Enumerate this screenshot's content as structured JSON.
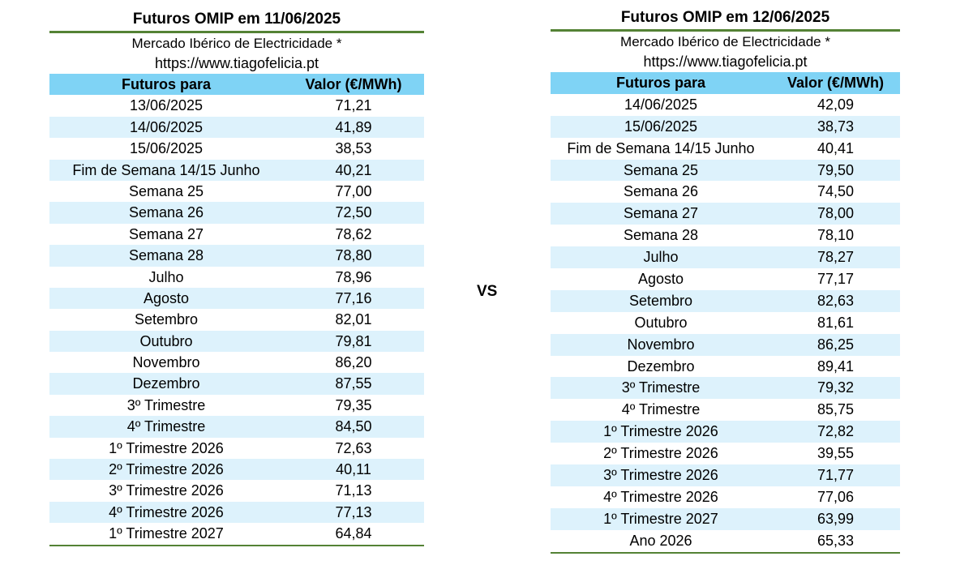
{
  "left": {
    "title": "Futuros OMIP em 11/06/2025",
    "subtitle": "Mercado Ibérico de Electricidade *",
    "url": "https://www.tiagofelicia.pt",
    "header": [
      "Futuros para",
      "Valor (€/MWh)"
    ],
    "rows": [
      [
        "13/06/2025",
        "71,21"
      ],
      [
        "14/06/2025",
        "41,89"
      ],
      [
        "15/06/2025",
        "38,53"
      ],
      [
        "Fim de Semana 14/15 Junho",
        "40,21"
      ],
      [
        "Semana 25",
        "77,00"
      ],
      [
        "Semana 26",
        "72,50"
      ],
      [
        "Semana 27",
        "78,62"
      ],
      [
        "Semana 28",
        "78,80"
      ],
      [
        "Julho",
        "78,96"
      ],
      [
        "Agosto",
        "77,16"
      ],
      [
        "Setembro",
        "82,01"
      ],
      [
        "Outubro",
        "79,81"
      ],
      [
        "Novembro",
        "86,20"
      ],
      [
        "Dezembro",
        "87,55"
      ],
      [
        "3º Trimestre",
        "79,35"
      ],
      [
        "4º Trimestre",
        "84,50"
      ],
      [
        "1º Trimestre 2026",
        "72,63"
      ],
      [
        "2º Trimestre 2026",
        "40,11"
      ],
      [
        "3º Trimestre 2026",
        "71,13"
      ],
      [
        "4º Trimestre 2026",
        "77,13"
      ],
      [
        "1º Trimestre 2027",
        "64,84"
      ]
    ]
  },
  "vs": "VS",
  "right": {
    "title": "Futuros OMIP em 12/06/2025",
    "subtitle": "Mercado Ibérico de Electricidade *",
    "url": "https://www.tiagofelicia.pt",
    "header": [
      "Futuros para",
      "Valor (€/MWh)"
    ],
    "rows": [
      [
        "14/06/2025",
        "42,09"
      ],
      [
        "15/06/2025",
        "38,73"
      ],
      [
        "Fim de Semana 14/15 Junho",
        "40,41"
      ],
      [
        "Semana 25",
        "79,50"
      ],
      [
        "Semana 26",
        "74,50"
      ],
      [
        "Semana 27",
        "78,00"
      ],
      [
        "Semana 28",
        "78,10"
      ],
      [
        "Julho",
        "78,27"
      ],
      [
        "Agosto",
        "77,17"
      ],
      [
        "Setembro",
        "82,63"
      ],
      [
        "Outubro",
        "81,61"
      ],
      [
        "Novembro",
        "86,25"
      ],
      [
        "Dezembro",
        "89,41"
      ],
      [
        "3º Trimestre",
        "79,32"
      ],
      [
        "4º Trimestre",
        "85,75"
      ],
      [
        "1º Trimestre 2026",
        "72,82"
      ],
      [
        "2º Trimestre 2026",
        "39,55"
      ],
      [
        "3º Trimestre 2026",
        "71,77"
      ],
      [
        "4º Trimestre 2026",
        "77,06"
      ],
      [
        "1º Trimestre 2027",
        "63,99"
      ],
      [
        "Ano 2026",
        "65,33"
      ]
    ]
  }
}
